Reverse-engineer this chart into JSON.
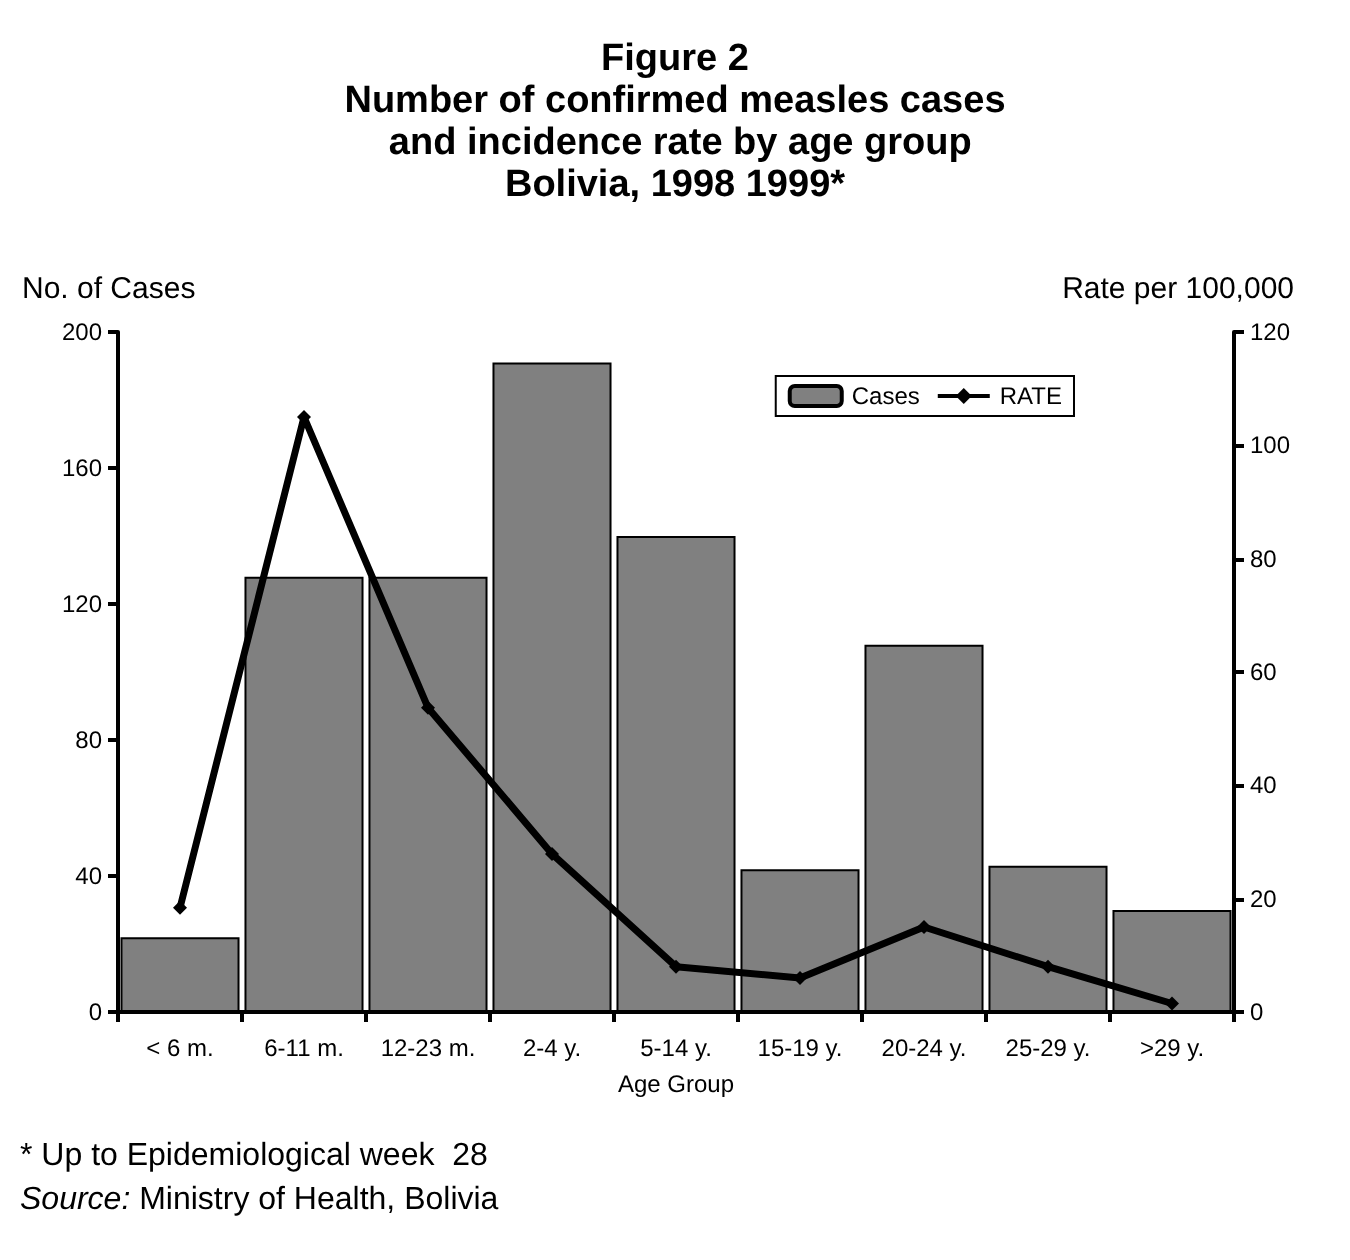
{
  "chart_data": {
    "type": "bar",
    "title": "Figure 2\nNumber of confirmed measles cases\n and incidence rate by age group\nBolivia, 1998 1999*",
    "xlabel": "Age Group",
    "ylabel": "No. of Cases",
    "y2label": "Rate per 100,000",
    "categories": [
      "< 6 m.",
      "6-11 m.",
      "12-23 m.",
      "2-4 y.",
      "5-14 y.",
      "15-19 y.",
      "20-24 y.",
      "25-29 y.",
      ">29 y."
    ],
    "series": [
      {
        "name": "Cases",
        "color": "#808080",
        "values": [
          22,
          128,
          128,
          191,
          140,
          42,
          108,
          43,
          30
        ]
      },
      {
        "name": "RATE",
        "type": "line",
        "axis": "y2",
        "color": "#000000",
        "values": [
          18.4,
          105,
          53.7,
          27.9,
          8,
          6,
          15,
          8,
          1.5
        ]
      }
    ],
    "ylim": [
      0,
      200
    ],
    "yticks": [
      0,
      40,
      80,
      120,
      160,
      200
    ],
    "y2lim": [
      0,
      120
    ],
    "y2ticks": [
      0,
      20,
      40,
      60,
      80,
      100,
      120
    ],
    "grid": false,
    "legend": "top right",
    "marker": "diamond",
    "annotations": [
      "* Up to Epidemiological week  28",
      "Source: Ministry of Health, Bolivia"
    ]
  }
}
